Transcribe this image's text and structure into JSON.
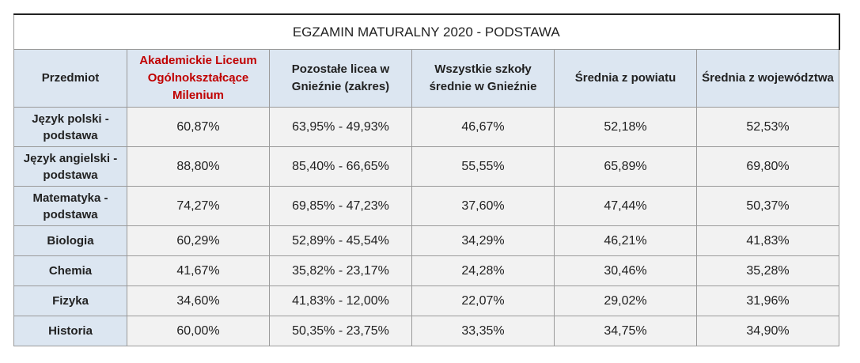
{
  "table": {
    "title": "EGZAMIN MATURALNY 2020 - PODSTAWA",
    "header": [
      "Przedmiot",
      "Akademickie Liceum Ogólnokształcące Milenium",
      "Pozostałe licea w Gnieźnie (zakres)",
      "Wszystkie szkoły średnie w Gnieźnie",
      "Średnia z powiatu",
      "Średnia z województwa"
    ],
    "rows": [
      [
        "Język polski - podstawa",
        "60,87%",
        "63,95% - 49,93%",
        "46,67%",
        "52,18%",
        "52,53%"
      ],
      [
        "Język angielski - podstawa",
        "88,80%",
        "85,40% - 66,65%",
        "55,55%",
        "65,89%",
        "69,80%"
      ],
      [
        "Matematyka - podstawa",
        "74,27%",
        "69,85% - 47,23%",
        "37,60%",
        "47,44%",
        "50,37%"
      ],
      [
        "Biologia",
        "60,29%",
        "52,89% - 45,54%",
        "34,29%",
        "46,21%",
        "41,83%"
      ],
      [
        "Chemia",
        "41,67%",
        "35,82% - 23,17%",
        "24,28%",
        "30,46%",
        "35,28%"
      ],
      [
        "Fizyka",
        "34,60%",
        "41,83% - 12,00%",
        "22,07%",
        "29,02%",
        "31,96%"
      ],
      [
        "Historia",
        "60,00%",
        "50,35% - 23,75%",
        "33,35%",
        "34,75%",
        "34,90%"
      ]
    ]
  }
}
